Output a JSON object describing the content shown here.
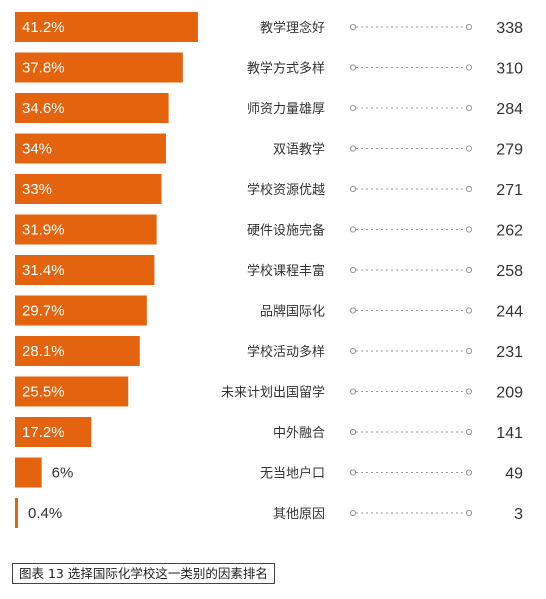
{
  "caption": "图表 13 选择国际化学校这一类别的因素排名",
  "colors": {
    "bar": "#e4630f",
    "dot_line": "#999999",
    "text": "#333333"
  },
  "chart_data": {
    "type": "bar",
    "orientation": "horizontal",
    "categories": [
      "教学理念好",
      "教学方式多样",
      "师资力量雄厚",
      "双语教学",
      "学校资源优越",
      "硬件设施完备",
      "学校课程丰富",
      "品牌国际化",
      "学校活动多样",
      "未来计划出国留学",
      "中外融合",
      "无当地户口",
      "其他原因"
    ],
    "values": [
      41.2,
      37.8,
      34.6,
      34,
      33,
      31.9,
      31.4,
      29.7,
      28.1,
      25.5,
      17.2,
      6,
      0.4
    ],
    "value_labels": [
      "41.2%",
      "37.8%",
      "34.6%",
      "34%",
      "33%",
      "31.9%",
      "31.4%",
      "29.7%",
      "28.1%",
      "25.5%",
      "17.2%",
      "6%",
      "0.4%"
    ],
    "counts": [
      "338",
      "310",
      "284",
      "279",
      "271",
      "262",
      "258",
      "244",
      "231",
      "209",
      "141",
      "49",
      "3"
    ],
    "value_unit": "%"
  }
}
